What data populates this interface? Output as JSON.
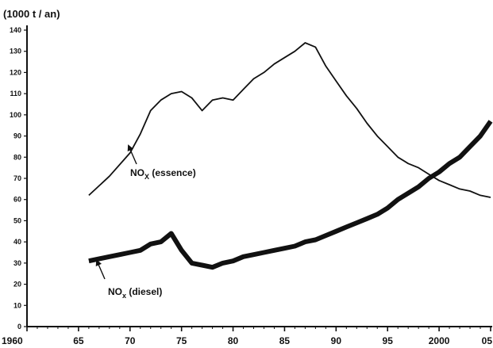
{
  "chart_data": {
    "type": "line",
    "title": "",
    "ylabel": "(1000 t / an)",
    "xlabel": "",
    "xlim": [
      1960,
      2005
    ],
    "ylim": [
      0,
      140
    ],
    "grid": false,
    "x_ticks": [
      1960,
      1965,
      1970,
      1975,
      1980,
      1985,
      1990,
      1995,
      2000,
      2005
    ],
    "x_tick_labels": [
      "1960",
      "65",
      "70",
      "75",
      "80",
      "85",
      "90",
      "95",
      "2000",
      "05"
    ],
    "y_ticks": [
      0,
      10,
      20,
      30,
      40,
      50,
      60,
      70,
      80,
      90,
      100,
      110,
      120,
      130,
      140
    ],
    "y_tick_labels": [
      "0",
      "10",
      "20",
      "30",
      "40",
      "50",
      "60",
      "70",
      "80",
      "90",
      "100",
      "110",
      "120",
      "130",
      "140"
    ],
    "series": [
      {
        "key": "essence",
        "name_main": "NO",
        "name_sub": "X",
        "name_rest": " (essence)",
        "x": [
          1966,
          1968,
          1970,
          1971,
          1972,
          1973,
          1974,
          1975,
          1976,
          1977,
          1978,
          1979,
          1980,
          1981,
          1982,
          1983,
          1984,
          1985,
          1986,
          1987,
          1988,
          1989,
          1990,
          1991,
          1992,
          1993,
          1994,
          1995,
          1996,
          1997,
          1998,
          1999,
          2000,
          2001,
          2002,
          2003,
          2004,
          2005
        ],
        "values": [
          62,
          71,
          82,
          91,
          102,
          107,
          110,
          111,
          108,
          102,
          107,
          108,
          107,
          112,
          117,
          120,
          124,
          127,
          130,
          134,
          132,
          123,
          116,
          109,
          103,
          96,
          90,
          85,
          80,
          77,
          75,
          72,
          69,
          67,
          65,
          64,
          62,
          61
        ],
        "color": "#111111",
        "stroke": 1.8
      },
      {
        "key": "diesel",
        "name_main": "NO",
        "name_sub": "x",
        "name_rest": " (diesel)",
        "x": [
          1966,
          1968,
          1969,
          1970,
          1971,
          1972,
          1973,
          1974,
          1975,
          1976,
          1977,
          1978,
          1979,
          1980,
          1981,
          1982,
          1983,
          1984,
          1985,
          1986,
          1987,
          1988,
          1989,
          1990,
          1991,
          1992,
          1993,
          1994,
          1995,
          1996,
          1997,
          1998,
          1999,
          2000,
          2001,
          2002,
          2003,
          2004,
          2005
        ],
        "values": [
          31,
          33,
          34,
          35,
          36,
          39,
          40,
          44,
          36,
          30,
          29,
          28,
          30,
          31,
          33,
          34,
          35,
          36,
          37,
          38,
          40,
          41,
          43,
          45,
          47,
          49,
          51,
          53,
          56,
          60,
          63,
          66,
          70,
          73,
          77,
          80,
          85,
          90,
          97
        ],
        "color": "#111111",
        "stroke": 6
      }
    ]
  }
}
